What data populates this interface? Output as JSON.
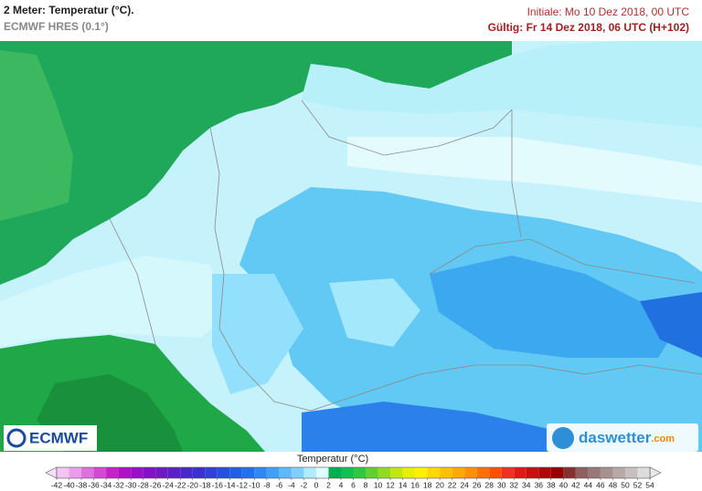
{
  "header": {
    "title": "2 Meter: Temperatur (°C).",
    "model": "ECMWF HRES (0.1°)",
    "init": "Initiale: Mo 10 Dez 2018, 00 UTC",
    "valid": "Gültig: Fr 14 Dez 2018, 06 UTC (H+102)"
  },
  "logos": {
    "left": "ECMWF",
    "right": "daswetter",
    "right_suffix": ".com"
  },
  "colorbar": {
    "title": "Temperatur (°C)",
    "ticks": [
      -42,
      -40,
      -38,
      -36,
      -34,
      -32,
      -30,
      -28,
      -26,
      -24,
      -22,
      -20,
      -18,
      -16,
      -14,
      -12,
      -10,
      -8,
      -6,
      -4,
      -2,
      0,
      2,
      4,
      6,
      8,
      10,
      12,
      14,
      16,
      18,
      20,
      22,
      24,
      26,
      28,
      30,
      32,
      34,
      36,
      38,
      40,
      42,
      44,
      46,
      48,
      50,
      52,
      54
    ],
    "colors": [
      "#f4c4f4",
      "#ec9cec",
      "#e070e0",
      "#d448d4",
      "#c820c8",
      "#b010c8",
      "#9a10c8",
      "#8410c8",
      "#7018c8",
      "#5c20c8",
      "#4828c8",
      "#3c30d0",
      "#3040d8",
      "#2850e0",
      "#2060e8",
      "#2070f0",
      "#3088f4",
      "#40a0f8",
      "#60b8fc",
      "#80d0ff",
      "#b0ecff",
      "#e0fcff",
      "#00b050",
      "#10c050",
      "#30c840",
      "#60d030",
      "#90dc20",
      "#c0e810",
      "#e8f000",
      "#fff000",
      "#ffd800",
      "#ffc000",
      "#ffa800",
      "#ff9000",
      "#ff7000",
      "#ff5000",
      "#f03020",
      "#e01818",
      "#c81010",
      "#b00808",
      "#980000",
      "#883030",
      "#906060",
      "#987878",
      "#a89090",
      "#b8a8a8",
      "#c8c0c0",
      "#dcdcdc"
    ]
  }
}
